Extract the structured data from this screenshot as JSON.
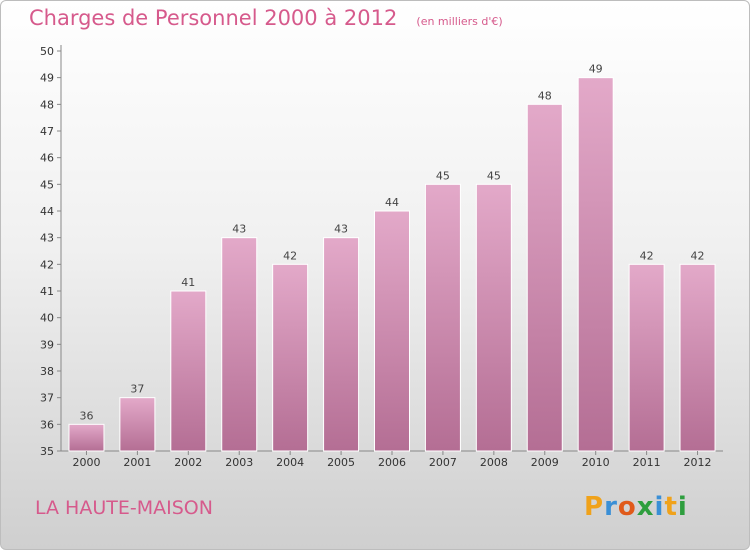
{
  "title": "Charges de Personnel 2000 à 2012",
  "subtitle": "(en milliers d'€)",
  "commune": "LA HAUTE-MAISON",
  "brand": {
    "letters": [
      {
        "char": "P",
        "color": "#f0a21a"
      },
      {
        "char": "r",
        "color": "#3a8fd6"
      },
      {
        "char": "o",
        "color": "#e05a1a"
      },
      {
        "char": "x",
        "color": "#2e9e3e"
      },
      {
        "char": "i",
        "color": "#3a8fd6"
      },
      {
        "char": "t",
        "color": "#f0a21a"
      },
      {
        "char": "i",
        "color": "#2e9e3e"
      }
    ]
  },
  "colors": {
    "accent": "#d65a8c",
    "bar_top": "#e3a9c9",
    "bar_bottom": "#b46e94",
    "bar_border": "#ffffff"
  },
  "chart_data": {
    "type": "bar",
    "title": "Charges de Personnel 2000 à 2012",
    "subtitle": "(en milliers d'€)",
    "categories": [
      "2000",
      "2001",
      "2002",
      "2003",
      "2004",
      "2005",
      "2006",
      "2007",
      "2008",
      "2009",
      "2010",
      "2011",
      "2012"
    ],
    "values": [
      36,
      37,
      41,
      43,
      42,
      43,
      44,
      45,
      45,
      48,
      49,
      42,
      42
    ],
    "data_labels": [
      "36",
      "37",
      "41",
      "43",
      "42",
      "43",
      "44",
      "45",
      "45",
      "48",
      "49",
      "42",
      "42"
    ],
    "ylim": [
      35,
      50
    ],
    "yticks": [
      "35",
      "36",
      "37",
      "38",
      "39",
      "40",
      "41",
      "42",
      "43",
      "44",
      "45",
      "46",
      "47",
      "48",
      "49",
      "50"
    ],
    "grid": false,
    "legend": "none"
  }
}
